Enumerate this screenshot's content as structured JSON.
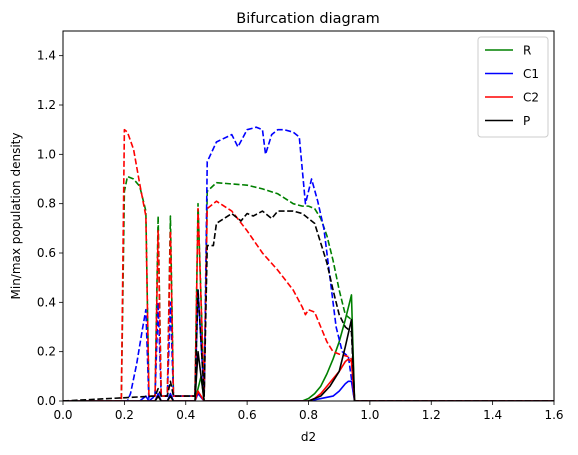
{
  "chart_data": {
    "type": "line",
    "title": "Bifurcation diagram",
    "xlabel": "d2",
    "ylabel": "Min/max population density",
    "xlim": [
      0.0,
      1.6
    ],
    "ylim": [
      0.0,
      1.5
    ],
    "xticks": [
      0.0,
      0.2,
      0.4,
      0.6,
      0.8,
      1.0,
      1.2,
      1.4,
      1.6
    ],
    "xtick_labels": [
      "0.0",
      "0.2",
      "0.4",
      "0.6",
      "0.8",
      "1.0",
      "1.2",
      "1.4",
      "1.6"
    ],
    "yticks": [
      0.0,
      0.2,
      0.4,
      0.6,
      0.8,
      1.0,
      1.2,
      1.4
    ],
    "ytick_labels": [
      "0.0",
      "0.2",
      "0.4",
      "0.6",
      "0.8",
      "1.0",
      "1.2",
      "1.4"
    ],
    "grid": false,
    "legend_position": "top-right",
    "series": [
      {
        "name": "R",
        "color": "#008000",
        "style": "solid",
        "points": [
          [
            0.0,
            0.0
          ],
          [
            0.3,
            0.0
          ],
          [
            0.31,
            0.02
          ],
          [
            0.32,
            0.0
          ],
          [
            0.34,
            0.0
          ],
          [
            0.35,
            0.02
          ],
          [
            0.36,
            0.0
          ],
          [
            0.43,
            0.0
          ],
          [
            0.44,
            0.05
          ],
          [
            0.45,
            0.1
          ],
          [
            0.46,
            0.0
          ],
          [
            0.47,
            0.0
          ],
          [
            0.78,
            0.0
          ],
          [
            0.8,
            0.01
          ],
          [
            0.82,
            0.03
          ],
          [
            0.84,
            0.06
          ],
          [
            0.86,
            0.11
          ],
          [
            0.88,
            0.17
          ],
          [
            0.9,
            0.24
          ],
          [
            0.92,
            0.33
          ],
          [
            0.93,
            0.38
          ],
          [
            0.94,
            0.43
          ],
          [
            0.95,
            0.0
          ],
          [
            1.6,
            0.0
          ]
        ]
      },
      {
        "name": "R",
        "color": "#008000",
        "style": "dashed",
        "points": [
          [
            0.0,
            0.0
          ],
          [
            0.19,
            0.0
          ],
          [
            0.2,
            0.85
          ],
          [
            0.21,
            0.91
          ],
          [
            0.23,
            0.9
          ],
          [
            0.25,
            0.87
          ],
          [
            0.27,
            0.77
          ],
          [
            0.28,
            0.02
          ],
          [
            0.3,
            0.02
          ],
          [
            0.31,
            0.75
          ],
          [
            0.32,
            0.02
          ],
          [
            0.34,
            0.02
          ],
          [
            0.35,
            0.75
          ],
          [
            0.36,
            0.02
          ],
          [
            0.43,
            0.02
          ],
          [
            0.44,
            0.8
          ],
          [
            0.46,
            0.02
          ],
          [
            0.47,
            0.85
          ],
          [
            0.5,
            0.885
          ],
          [
            0.55,
            0.88
          ],
          [
            0.6,
            0.875
          ],
          [
            0.65,
            0.86
          ],
          [
            0.7,
            0.84
          ],
          [
            0.75,
            0.8
          ],
          [
            0.78,
            0.79
          ],
          [
            0.8,
            0.79
          ],
          [
            0.82,
            0.78
          ],
          [
            0.84,
            0.74
          ],
          [
            0.86,
            0.67
          ],
          [
            0.88,
            0.57
          ],
          [
            0.9,
            0.45
          ],
          [
            0.92,
            0.35
          ],
          [
            0.94,
            0.33
          ],
          [
            0.95,
            0.0
          ],
          [
            1.6,
            0.0
          ]
        ]
      },
      {
        "name": "C1",
        "color": "#0000ff",
        "style": "solid",
        "points": [
          [
            0.0,
            0.0
          ],
          [
            0.2,
            0.0
          ],
          [
            0.25,
            0.0
          ],
          [
            0.27,
            0.02
          ],
          [
            0.28,
            0.0
          ],
          [
            0.3,
            0.0
          ],
          [
            0.31,
            0.03
          ],
          [
            0.32,
            0.0
          ],
          [
            0.34,
            0.0
          ],
          [
            0.35,
            0.03
          ],
          [
            0.36,
            0.0
          ],
          [
            0.43,
            0.0
          ],
          [
            0.44,
            0.03
          ],
          [
            0.46,
            0.0
          ],
          [
            0.8,
            0.0
          ],
          [
            0.84,
            0.01
          ],
          [
            0.88,
            0.02
          ],
          [
            0.9,
            0.04
          ],
          [
            0.92,
            0.07
          ],
          [
            0.93,
            0.08
          ],
          [
            0.94,
            0.08
          ],
          [
            0.95,
            0.0
          ],
          [
            1.6,
            0.0
          ]
        ]
      },
      {
        "name": "C1",
        "color": "#0000ff",
        "style": "dashed",
        "points": [
          [
            0.0,
            0.0
          ],
          [
            0.21,
            0.0
          ],
          [
            0.22,
            0.03
          ],
          [
            0.24,
            0.15
          ],
          [
            0.26,
            0.3
          ],
          [
            0.27,
            0.37
          ],
          [
            0.28,
            0.0
          ],
          [
            0.3,
            0.02
          ],
          [
            0.31,
            0.4
          ],
          [
            0.32,
            0.02
          ],
          [
            0.34,
            0.02
          ],
          [
            0.35,
            0.4
          ],
          [
            0.36,
            0.02
          ],
          [
            0.43,
            0.02
          ],
          [
            0.44,
            0.45
          ],
          [
            0.46,
            0.02
          ],
          [
            0.47,
            0.97
          ],
          [
            0.5,
            1.05
          ],
          [
            0.55,
            1.08
          ],
          [
            0.57,
            1.03
          ],
          [
            0.6,
            1.1
          ],
          [
            0.63,
            1.11
          ],
          [
            0.65,
            1.1
          ],
          [
            0.66,
            1.0
          ],
          [
            0.68,
            1.08
          ],
          [
            0.7,
            1.1
          ],
          [
            0.72,
            1.1
          ],
          [
            0.75,
            1.09
          ],
          [
            0.77,
            1.07
          ],
          [
            0.79,
            0.8
          ],
          [
            0.81,
            0.9
          ],
          [
            0.83,
            0.81
          ],
          [
            0.85,
            0.7
          ],
          [
            0.87,
            0.5
          ],
          [
            0.89,
            0.3
          ],
          [
            0.91,
            0.2
          ],
          [
            0.93,
            0.18
          ],
          [
            0.95,
            0.0
          ],
          [
            1.6,
            0.0
          ]
        ]
      },
      {
        "name": "C2",
        "color": "#ff0000",
        "style": "solid",
        "points": [
          [
            0.0,
            0.0
          ],
          [
            0.3,
            0.0
          ],
          [
            0.31,
            0.02
          ],
          [
            0.32,
            0.0
          ],
          [
            0.43,
            0.0
          ],
          [
            0.44,
            0.04
          ],
          [
            0.46,
            0.0
          ],
          [
            0.8,
            0.0
          ],
          [
            0.82,
            0.01
          ],
          [
            0.84,
            0.03
          ],
          [
            0.86,
            0.06
          ],
          [
            0.88,
            0.09
          ],
          [
            0.9,
            0.12
          ],
          [
            0.92,
            0.16
          ],
          [
            0.93,
            0.17
          ],
          [
            0.94,
            0.16
          ],
          [
            0.95,
            0.0
          ],
          [
            1.6,
            0.0
          ]
        ]
      },
      {
        "name": "C2",
        "color": "#ff0000",
        "style": "dashed",
        "points": [
          [
            0.0,
            0.0
          ],
          [
            0.19,
            0.0
          ],
          [
            0.2,
            1.1
          ],
          [
            0.21,
            1.09
          ],
          [
            0.23,
            1.02
          ],
          [
            0.25,
            0.88
          ],
          [
            0.27,
            0.75
          ],
          [
            0.28,
            0.02
          ],
          [
            0.3,
            0.02
          ],
          [
            0.31,
            0.69
          ],
          [
            0.32,
            0.02
          ],
          [
            0.34,
            0.02
          ],
          [
            0.35,
            0.69
          ],
          [
            0.36,
            0.02
          ],
          [
            0.43,
            0.02
          ],
          [
            0.44,
            0.78
          ],
          [
            0.46,
            0.02
          ],
          [
            0.47,
            0.78
          ],
          [
            0.5,
            0.81
          ],
          [
            0.55,
            0.77
          ],
          [
            0.6,
            0.69
          ],
          [
            0.65,
            0.6
          ],
          [
            0.7,
            0.53
          ],
          [
            0.75,
            0.45
          ],
          [
            0.78,
            0.38
          ],
          [
            0.79,
            0.35
          ],
          [
            0.8,
            0.37
          ],
          [
            0.82,
            0.36
          ],
          [
            0.84,
            0.3
          ],
          [
            0.86,
            0.24
          ],
          [
            0.88,
            0.2
          ],
          [
            0.9,
            0.19
          ],
          [
            0.93,
            0.18
          ],
          [
            0.94,
            0.17
          ],
          [
            0.95,
            0.0
          ],
          [
            1.6,
            0.0
          ]
        ]
      },
      {
        "name": "P",
        "color": "#000000",
        "style": "solid",
        "points": [
          [
            0.0,
            0.0
          ],
          [
            0.3,
            0.0
          ],
          [
            0.31,
            0.02
          ],
          [
            0.32,
            0.0
          ],
          [
            0.34,
            0.0
          ],
          [
            0.35,
            0.02
          ],
          [
            0.36,
            0.0
          ],
          [
            0.43,
            0.0
          ],
          [
            0.44,
            0.2
          ],
          [
            0.46,
            0.0
          ],
          [
            0.8,
            0.0
          ],
          [
            0.84,
            0.02
          ],
          [
            0.87,
            0.06
          ],
          [
            0.9,
            0.12
          ],
          [
            0.92,
            0.22
          ],
          [
            0.94,
            0.33
          ],
          [
            0.95,
            0.0
          ],
          [
            1.6,
            0.0
          ]
        ]
      },
      {
        "name": "P",
        "color": "#000000",
        "style": "dashed",
        "points": [
          [
            0.0,
            0.0
          ],
          [
            0.3,
            0.02
          ],
          [
            0.31,
            0.05
          ],
          [
            0.32,
            0.02
          ],
          [
            0.34,
            0.02
          ],
          [
            0.35,
            0.08
          ],
          [
            0.36,
            0.02
          ],
          [
            0.43,
            0.02
          ],
          [
            0.44,
            0.45
          ],
          [
            0.46,
            0.02
          ],
          [
            0.47,
            0.63
          ],
          [
            0.49,
            0.63
          ],
          [
            0.5,
            0.72
          ],
          [
            0.55,
            0.76
          ],
          [
            0.58,
            0.73
          ],
          [
            0.6,
            0.76
          ],
          [
            0.62,
            0.75
          ],
          [
            0.65,
            0.77
          ],
          [
            0.68,
            0.74
          ],
          [
            0.7,
            0.77
          ],
          [
            0.75,
            0.77
          ],
          [
            0.78,
            0.76
          ],
          [
            0.8,
            0.74
          ],
          [
            0.82,
            0.72
          ],
          [
            0.84,
            0.64
          ],
          [
            0.86,
            0.56
          ],
          [
            0.88,
            0.45
          ],
          [
            0.9,
            0.35
          ],
          [
            0.92,
            0.3
          ],
          [
            0.94,
            0.28
          ],
          [
            0.95,
            0.0
          ],
          [
            1.6,
            0.0
          ]
        ]
      }
    ],
    "legend": [
      {
        "label": "R",
        "color": "#008000"
      },
      {
        "label": "C1",
        "color": "#0000ff"
      },
      {
        "label": "C2",
        "color": "#ff0000"
      },
      {
        "label": "P",
        "color": "#000000"
      }
    ]
  }
}
